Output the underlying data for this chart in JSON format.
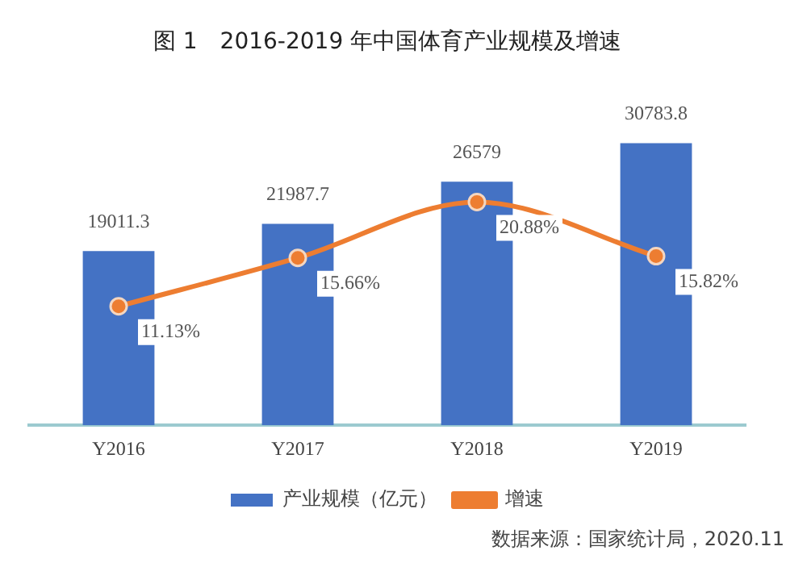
{
  "chart_data": {
    "type": "bar",
    "title": "图 1　2016-2019 年中国体育产业规模及增速",
    "categories": [
      "Y2016",
      "Y2017",
      "Y2018",
      "Y2019"
    ],
    "series": [
      {
        "name": "产业规模（亿元）",
        "type": "bar",
        "color": "#4472c4",
        "values": [
          19011.3,
          21987.7,
          26579,
          30783.8
        ],
        "value_labels": [
          "19011.3",
          "21987.7",
          "26579",
          "30783.8"
        ]
      },
      {
        "name": "增速",
        "type": "line",
        "axis": "y2",
        "color": "#ed7d31",
        "values": [
          11.13,
          15.66,
          20.88,
          15.82
        ],
        "value_labels": [
          "11.13%",
          "15.66%",
          "20.88%",
          "15.82%"
        ]
      }
    ],
    "legend": "bottom",
    "marker": "circle",
    "annotations": [
      "数据来源：国家统计局，2020.11"
    ]
  }
}
